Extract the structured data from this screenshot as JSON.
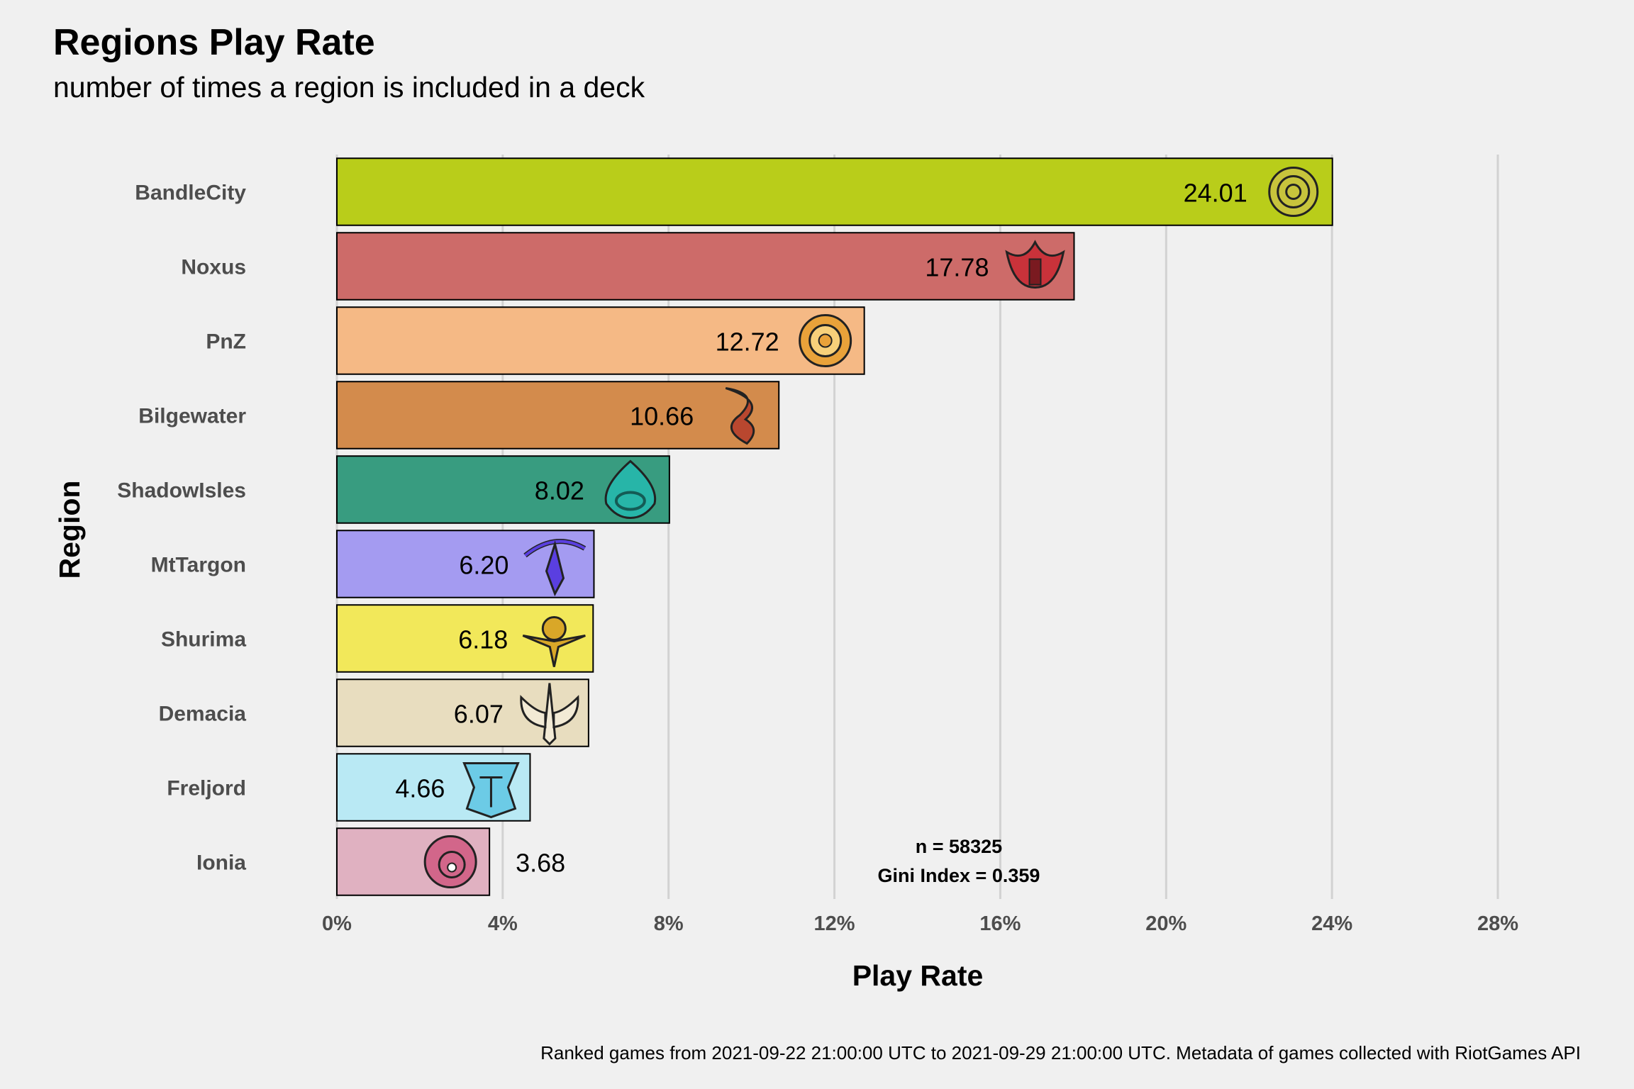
{
  "title": "Regions Play Rate",
  "subtitle": "number of times a region is included in a deck",
  "caption": "Ranked games from 2021-09-22 21:00:00 UTC to 2021-09-29 21:00:00 UTC. Metadata of games collected with RiotGames API",
  "annotation": {
    "n": "n = 58325",
    "gini": "Gini Index = 0.359",
    "position_value": 15
  },
  "chart_data": {
    "type": "bar",
    "orientation": "horizontal",
    "xlabel": "Play Rate",
    "ylabel": "Region",
    "xlim": [
      0,
      28
    ],
    "x_ticks": [
      0,
      4,
      8,
      12,
      16,
      20,
      24,
      28
    ],
    "x_tick_labels": [
      "0%",
      "4%",
      "8%",
      "12%",
      "16%",
      "20%",
      "24%",
      "28%"
    ],
    "grid": "vertical major",
    "categories": [
      "BandleCity",
      "Noxus",
      "PnZ",
      "Bilgewater",
      "ShadowIsles",
      "MtTargon",
      "Shurima",
      "Demacia",
      "Freljord",
      "Ionia"
    ],
    "values": [
      24.01,
      17.78,
      12.72,
      10.66,
      8.02,
      6.2,
      6.18,
      6.07,
      4.66,
      3.68
    ],
    "value_labels": [
      "24.01",
      "17.78",
      "12.72",
      "10.66",
      "8.02",
      "6.20",
      "6.18",
      "6.07",
      "4.66",
      "3.68"
    ],
    "colors": [
      "#b9cd1a",
      "#cd6b69",
      "#f5b985",
      "#d38b4c",
      "#389c80",
      "#a49bf1",
      "#f2e85a",
      "#e8ddbf",
      "#b9e9f4",
      "#e0b1c1"
    ],
    "icons": [
      "bandlecity-emblem-icon",
      "noxus-emblem-icon",
      "pnz-emblem-icon",
      "bilgewater-emblem-icon",
      "shadowisles-emblem-icon",
      "mttargon-emblem-icon",
      "shurima-emblem-icon",
      "demacia-emblem-icon",
      "freljord-emblem-icon",
      "ionia-emblem-icon"
    ],
    "icon_colors": [
      "#c7c43c",
      "#c9323a",
      "#e9a23a",
      "#b9472f",
      "#27b5a8",
      "#5a3fe0",
      "#d9a728",
      "#f2ead5",
      "#6ccbe6",
      "#d2668a"
    ]
  }
}
